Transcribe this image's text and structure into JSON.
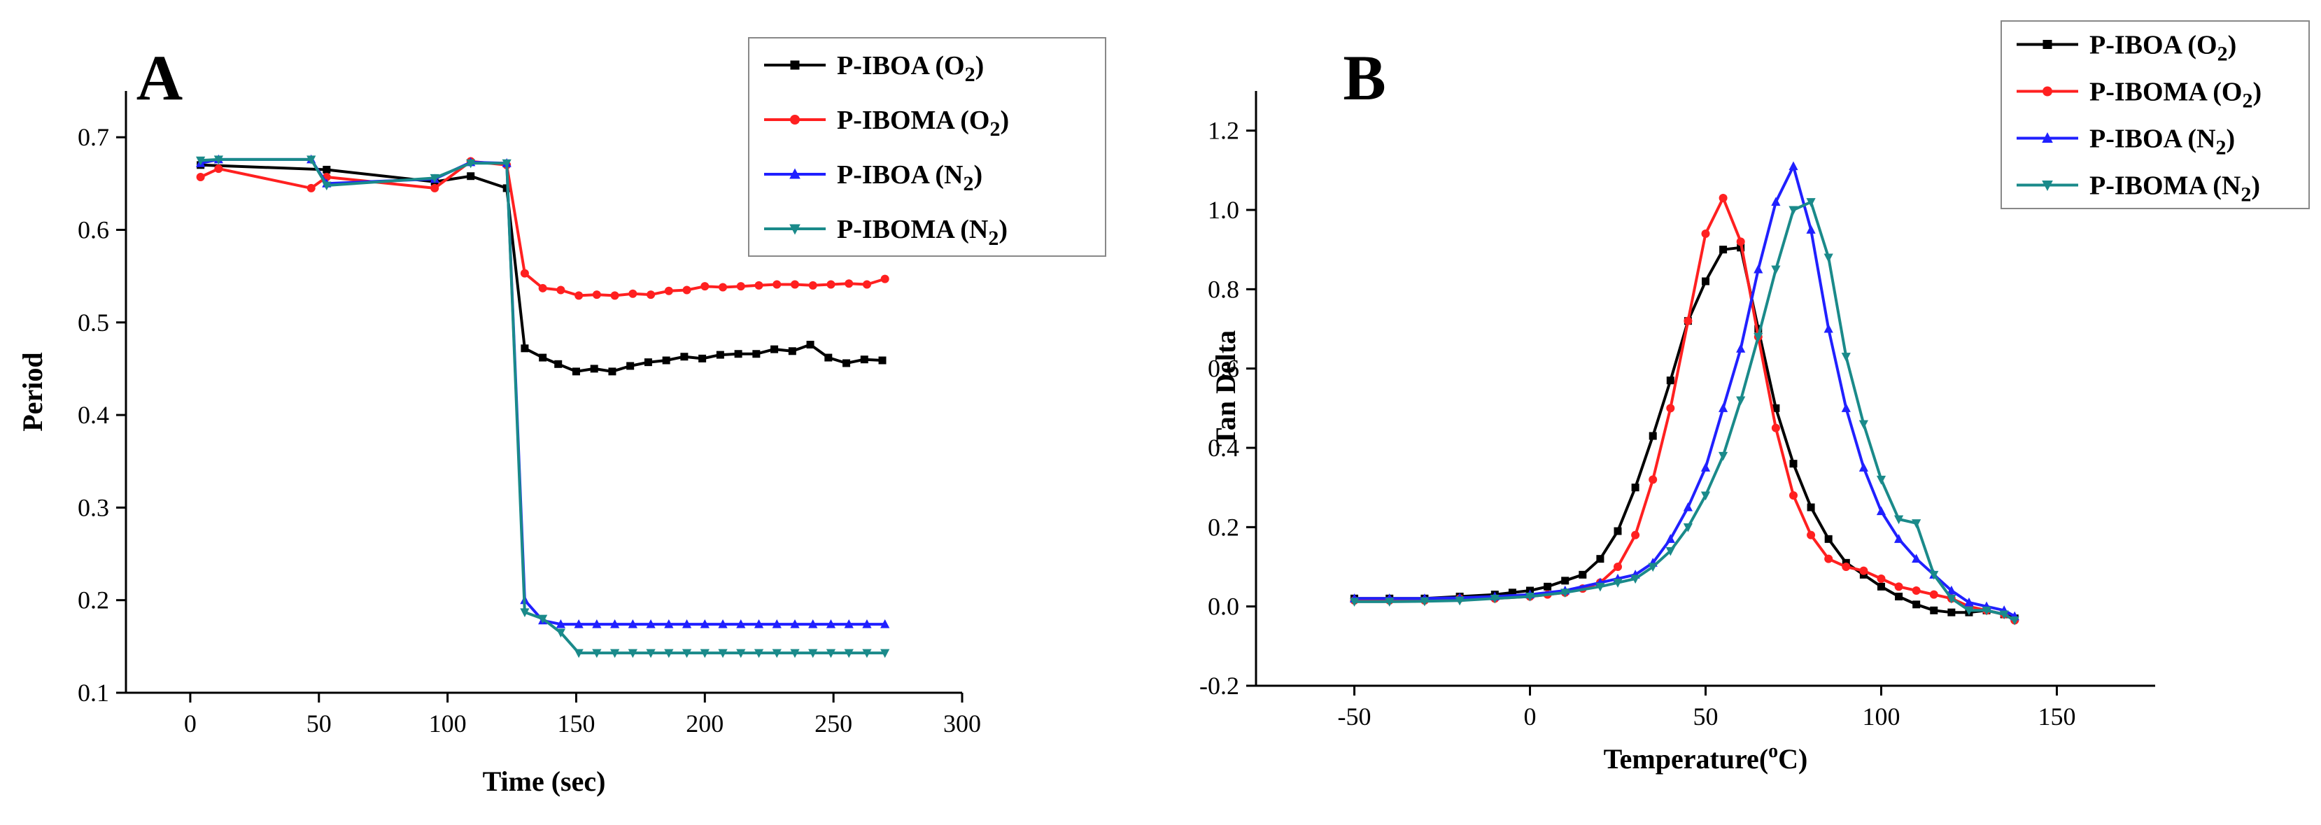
{
  "chart_data": [
    {
      "panel": "A",
      "type": "line",
      "title": "",
      "xlabel": "Time (sec)",
      "ylabel": "Period",
      "xlim": [
        -25,
        300
      ],
      "ylim": [
        0.1,
        0.75
      ],
      "xticks": [
        0,
        50,
        100,
        150,
        200,
        250,
        300
      ],
      "yticks": [
        0.1,
        0.2,
        0.3,
        0.4,
        0.5,
        0.6,
        0.7
      ],
      "grid": false,
      "legend_position": "top-right",
      "series": [
        {
          "name": "P-IBOA (O2)",
          "legend_main": "P-IBOA (O",
          "legend_sub": "2",
          "legend_close": ")",
          "color": "#000000",
          "marker": "square",
          "x": [
            4,
            53,
            95,
            109,
            123,
            130,
            137,
            143,
            150,
            157,
            164,
            171,
            178,
            185,
            192,
            199,
            206,
            213,
            220,
            227,
            234,
            241,
            248,
            255,
            262,
            269
          ],
          "y": [
            0.67,
            0.665,
            0.652,
            0.658,
            0.645,
            0.472,
            0.462,
            0.455,
            0.447,
            0.45,
            0.447,
            0.453,
            0.457,
            0.459,
            0.463,
            0.461,
            0.465,
            0.466,
            0.466,
            0.471,
            0.469,
            0.476,
            0.462,
            0.456,
            0.46,
            0.459
          ]
        },
        {
          "name": "P-IBOMA (O2)",
          "legend_main": "P-IBOMA (O",
          "legend_sub": "2",
          "legend_close": ")",
          "color": "#ff2020",
          "marker": "circle",
          "x": [
            4,
            11,
            47,
            53,
            95,
            109,
            123,
            130,
            137,
            144,
            151,
            158,
            165,
            172,
            179,
            186,
            193,
            200,
            207,
            214,
            221,
            228,
            235,
            242,
            249,
            256,
            263,
            270
          ],
          "y": [
            0.657,
            0.666,
            0.645,
            0.657,
            0.645,
            0.674,
            0.67,
            0.553,
            0.537,
            0.535,
            0.529,
            0.53,
            0.529,
            0.531,
            0.53,
            0.534,
            0.535,
            0.539,
            0.538,
            0.539,
            0.54,
            0.541,
            0.541,
            0.54,
            0.541,
            0.542,
            0.541,
            0.547
          ]
        },
        {
          "name": "P-IBOA (N2)",
          "legend_main": "P-IBOA (N",
          "legend_sub": "2",
          "legend_close": ")",
          "color": "#2020ff",
          "marker": "triangle-up",
          "x": [
            4,
            11,
            47,
            53,
            95,
            109,
            123,
            130,
            137,
            144,
            151,
            158,
            165,
            172,
            179,
            186,
            193,
            200,
            207,
            214,
            221,
            228,
            235,
            242,
            249,
            256,
            263,
            270
          ],
          "y": [
            0.672,
            0.676,
            0.676,
            0.65,
            0.655,
            0.673,
            0.672,
            0.2,
            0.178,
            0.174,
            0.174,
            0.174,
            0.174,
            0.174,
            0.174,
            0.174,
            0.174,
            0.174,
            0.174,
            0.174,
            0.174,
            0.174,
            0.174,
            0.174,
            0.174,
            0.174,
            0.174,
            0.174
          ]
        },
        {
          "name": "P-IBOMA (N2)",
          "legend_main": "P-IBOMA (N",
          "legend_sub": "2",
          "legend_close": ")",
          "color": "#1a8a8a",
          "marker": "triangle-down",
          "x": [
            4,
            11,
            47,
            53,
            95,
            109,
            123,
            130,
            137,
            144,
            151,
            158,
            165,
            172,
            179,
            186,
            193,
            200,
            207,
            214,
            221,
            228,
            235,
            242,
            249,
            256,
            263,
            270
          ],
          "y": [
            0.675,
            0.676,
            0.676,
            0.648,
            0.656,
            0.672,
            0.672,
            0.187,
            0.18,
            0.165,
            0.143,
            0.143,
            0.143,
            0.143,
            0.143,
            0.143,
            0.143,
            0.143,
            0.143,
            0.143,
            0.143,
            0.143,
            0.143,
            0.143,
            0.143,
            0.143,
            0.143,
            0.143
          ]
        }
      ]
    },
    {
      "panel": "B",
      "type": "line",
      "title": "",
      "xlabel_main": "Temperature(",
      "xlabel_sup": "o",
      "xlabel_end": "C)",
      "ylabel": "Tan Delta",
      "xlim": [
        -78,
        178
      ],
      "ylim": [
        -0.2,
        1.3
      ],
      "xticks": [
        -50,
        0,
        50,
        100,
        150
      ],
      "yticks": [
        -0.2,
        0.0,
        0.2,
        0.4,
        0.6,
        0.8,
        1.0,
        1.2
      ],
      "ytick_format": 1,
      "grid": false,
      "legend_position": "top-right",
      "series": [
        {
          "name": "P-IBOA (O2)",
          "legend_main": "P-IBOA (O",
          "legend_sub": "2",
          "legend_close": ")",
          "color": "#000000",
          "marker": "square",
          "x": [
            -50,
            -40,
            -30,
            -20,
            -10,
            -5,
            0,
            5,
            10,
            15,
            20,
            25,
            30,
            35,
            40,
            45,
            50,
            55,
            60,
            65,
            70,
            75,
            80,
            85,
            90,
            95,
            100,
            105,
            110,
            115,
            120,
            125,
            130,
            135,
            138
          ],
          "y": [
            0.02,
            0.02,
            0.02,
            0.025,
            0.03,
            0.035,
            0.04,
            0.05,
            0.065,
            0.08,
            0.12,
            0.19,
            0.3,
            0.43,
            0.57,
            0.72,
            0.82,
            0.9,
            0.905,
            0.7,
            0.5,
            0.36,
            0.25,
            0.17,
            0.11,
            0.08,
            0.05,
            0.025,
            0.005,
            -0.01,
            -0.015,
            -0.015,
            -0.01,
            -0.02,
            -0.03
          ]
        },
        {
          "name": "P-IBOMA (O2)",
          "legend_main": "P-IBOMA (O",
          "legend_sub": "2",
          "legend_close": ")",
          "color": "#ff2020",
          "marker": "circle",
          "x": [
            -50,
            -40,
            -30,
            -20,
            -10,
            0,
            5,
            10,
            15,
            20,
            25,
            30,
            35,
            40,
            45,
            50,
            55,
            60,
            65,
            70,
            75,
            80,
            85,
            90,
            95,
            100,
            105,
            110,
            115,
            120,
            125,
            130,
            135,
            138
          ],
          "y": [
            0.015,
            0.015,
            0.015,
            0.02,
            0.02,
            0.025,
            0.03,
            0.035,
            0.045,
            0.06,
            0.1,
            0.18,
            0.32,
            0.5,
            0.72,
            0.94,
            1.03,
            0.92,
            0.68,
            0.45,
            0.28,
            0.18,
            0.12,
            0.1,
            0.09,
            0.07,
            0.05,
            0.04,
            0.03,
            0.02,
            0.0,
            -0.01,
            -0.02,
            -0.035
          ]
        },
        {
          "name": "P-IBOA (N2)",
          "legend_main": "P-IBOA (N",
          "legend_sub": "2",
          "legend_close": ")",
          "color": "#2020ff",
          "marker": "triangle-up",
          "x": [
            -50,
            -40,
            -30,
            -20,
            -10,
            0,
            10,
            20,
            25,
            30,
            35,
            40,
            45,
            50,
            55,
            60,
            65,
            70,
            75,
            80,
            85,
            90,
            95,
            100,
            105,
            110,
            115,
            120,
            125,
            130,
            135,
            138
          ],
          "y": [
            0.02,
            0.02,
            0.02,
            0.022,
            0.025,
            0.03,
            0.04,
            0.06,
            0.07,
            0.08,
            0.11,
            0.17,
            0.25,
            0.35,
            0.5,
            0.65,
            0.85,
            1.02,
            1.11,
            0.95,
            0.7,
            0.5,
            0.35,
            0.24,
            0.17,
            0.12,
            0.08,
            0.04,
            0.01,
            0.0,
            -0.01,
            -0.025
          ]
        },
        {
          "name": "P-IBOMA (N2)",
          "legend_main": "P-IBOMA (N",
          "legend_sub": "2",
          "legend_close": ")",
          "color": "#1a8a8a",
          "marker": "triangle-down",
          "x": [
            -50,
            -40,
            -30,
            -20,
            -10,
            0,
            10,
            20,
            25,
            30,
            35,
            40,
            45,
            50,
            55,
            60,
            65,
            70,
            75,
            80,
            85,
            90,
            95,
            100,
            105,
            110,
            115,
            120,
            125,
            130,
            135,
            138
          ],
          "y": [
            0.012,
            0.012,
            0.013,
            0.015,
            0.02,
            0.025,
            0.035,
            0.05,
            0.06,
            0.07,
            0.1,
            0.14,
            0.2,
            0.28,
            0.38,
            0.52,
            0.68,
            0.85,
            1.0,
            1.02,
            0.88,
            0.63,
            0.46,
            0.32,
            0.22,
            0.21,
            0.08,
            0.02,
            -0.01,
            -0.01,
            -0.02,
            -0.035
          ]
        }
      ]
    }
  ]
}
